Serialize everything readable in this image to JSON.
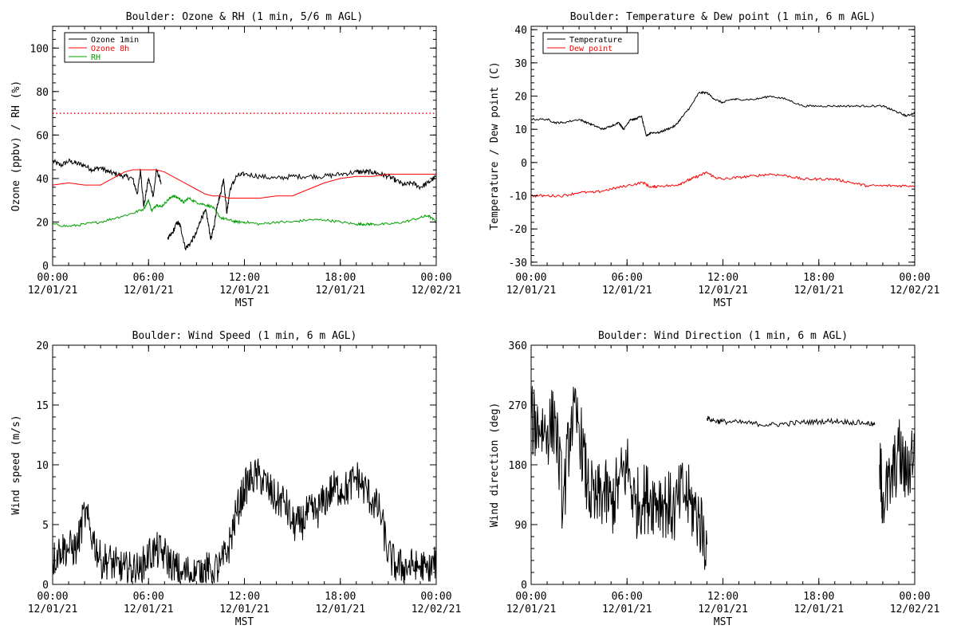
{
  "figure": {
    "background": "#ffffff",
    "axis_color": "#000000"
  },
  "chart_data": [
    {
      "id": "ozone",
      "type": "line",
      "title": "Boulder: Ozone & RH (1 min, 5/6 m AGL)",
      "xlabel": "MST",
      "ylabel": "Ozone (ppbv) / RH (%)",
      "xlim": [
        0,
        24
      ],
      "ylim": [
        0,
        110
      ],
      "yticks": [
        0,
        20,
        40,
        60,
        80,
        100
      ],
      "xticks": [
        {
          "time": "00:00",
          "date": "12/01/21"
        },
        {
          "time": "06:00",
          "date": "12/01/21"
        },
        {
          "time": "12:00",
          "date": "12/01/21"
        },
        {
          "time": "18:00",
          "date": "12/01/21"
        },
        {
          "time": "00:00",
          "date": "12/02/21"
        }
      ],
      "legend_position": "top-left",
      "reference_line": {
        "y": 70,
        "color": "#ff0000",
        "style": "dotted"
      },
      "series": [
        {
          "name": "Ozone 1min",
          "color": "#000000",
          "noise": 1.2,
          "x": [
            0,
            0.5,
            1,
            1.5,
            2,
            2.5,
            3,
            3.5,
            4,
            4.5,
            5,
            5.3,
            5.5,
            5.7,
            6,
            6.3,
            6.5,
            6.8,
            7.0,
            7.2,
            7.5,
            7.8,
            8.0,
            8.3,
            8.6,
            9.0,
            9.3,
            9.6,
            9.9,
            10.1,
            10.3,
            10.5,
            10.7,
            10.9,
            11.1,
            11.5,
            12,
            13,
            14,
            15,
            16,
            17,
            18,
            19,
            19.5,
            20,
            20.5,
            21,
            21.5,
            22,
            22.5,
            23,
            23.5,
            24
          ],
          "y": [
            48,
            46,
            48,
            47,
            46,
            44,
            45,
            43,
            42,
            41,
            40,
            33,
            44,
            27,
            40,
            32,
            44,
            38,
            null,
            12,
            15,
            20,
            18,
            8,
            10,
            15,
            22,
            25,
            12,
            18,
            28,
            33,
            40,
            24,
            35,
            41,
            42,
            41,
            40,
            41,
            41,
            41,
            42,
            43,
            43,
            43,
            42,
            41,
            39,
            37,
            38,
            36,
            38,
            41
          ]
        },
        {
          "name": "Ozone 8h",
          "color": "#ff0000",
          "noise": 0,
          "x": [
            0,
            1,
            2,
            3,
            3.5,
            4,
            4.5,
            5,
            5.5,
            6,
            6.5,
            7,
            7.5,
            8,
            8.5,
            9,
            9.5,
            10,
            10.5,
            11,
            12,
            13,
            14,
            15,
            16,
            17,
            18,
            19,
            20,
            21,
            22,
            23,
            24
          ],
          "y": [
            37,
            38,
            37,
            37,
            39,
            41,
            43,
            44,
            44,
            44,
            44,
            43,
            41,
            39,
            37,
            35,
            33,
            32,
            32,
            31,
            31,
            31,
            32,
            32,
            35,
            38,
            40,
            41,
            41,
            42,
            42,
            42,
            42
          ]
        },
        {
          "name": "RH",
          "color": "#00a000",
          "noise": 0.6,
          "x": [
            0,
            1,
            2,
            3,
            4,
            5,
            5.7,
            6,
            6.2,
            6.5,
            6.8,
            7.2,
            7.5,
            7.9,
            8.2,
            8.5,
            9,
            9.5,
            10,
            10.5,
            11,
            11.5,
            12,
            13,
            14,
            15,
            16,
            17,
            18,
            19,
            19.5,
            20,
            21,
            22,
            23,
            23.5,
            24
          ],
          "y": [
            19,
            18,
            19,
            20,
            22,
            24,
            26,
            30,
            25,
            28,
            27,
            30,
            32,
            31,
            29,
            31,
            29,
            28,
            27,
            22,
            21,
            20,
            20,
            19,
            20,
            20,
            21,
            21,
            20,
            19,
            19,
            19,
            19,
            20,
            22,
            23,
            20
          ]
        }
      ]
    },
    {
      "id": "temperature",
      "type": "line",
      "title": "Boulder: Temperature & Dew point (1 min, 6 m AGL)",
      "xlabel": "MST",
      "ylabel": "Temperature / Dew point (C)",
      "xlim": [
        0,
        24
      ],
      "ylim": [
        -31,
        41
      ],
      "yticks": [
        -30,
        -20,
        -10,
        0,
        10,
        20,
        30,
        40
      ],
      "xticks": [
        {
          "time": "00:00",
          "date": "12/01/21"
        },
        {
          "time": "06:00",
          "date": "12/01/21"
        },
        {
          "time": "12:00",
          "date": "12/01/21"
        },
        {
          "time": "18:00",
          "date": "12/01/21"
        },
        {
          "time": "00:00",
          "date": "12/02/21"
        }
      ],
      "legend_position": "top-left",
      "series": [
        {
          "name": "Temperature",
          "color": "#000000",
          "noise": 0.3,
          "x": [
            0,
            1,
            1.5,
            2,
            3,
            3.5,
            4,
            4.5,
            5,
            5.5,
            5.8,
            6.2,
            6.5,
            6.9,
            7.2,
            7.5,
            8,
            8.5,
            9,
            9.5,
            10,
            10.5,
            11,
            11.5,
            12,
            12.5,
            13,
            14,
            15,
            16,
            17,
            18,
            19,
            20,
            21,
            22,
            22.5,
            23,
            23.5,
            24
          ],
          "y": [
            13,
            13,
            12,
            12,
            13,
            12,
            11,
            10,
            11,
            12,
            10,
            13,
            13,
            14,
            8,
            9,
            9,
            10,
            11,
            14,
            17,
            21,
            21,
            19,
            18,
            19,
            19,
            19,
            20,
            19,
            17,
            17,
            17,
            17,
            17,
            17,
            16,
            15,
            14,
            15
          ]
        },
        {
          "name": "Dew point",
          "color": "#ff0000",
          "noise": 0.4,
          "x": [
            0,
            1,
            2,
            3,
            4,
            5,
            6,
            7,
            7.5,
            8,
            9,
            9.5,
            10,
            10.5,
            11,
            11.5,
            12,
            13,
            14,
            15,
            16,
            17,
            18,
            19,
            20,
            21,
            22,
            23,
            24
          ],
          "y": [
            -10,
            -10,
            -10,
            -9,
            -9,
            -8,
            -7,
            -6,
            -7.5,
            -7,
            -7,
            -6,
            -5,
            -4,
            -3,
            -4.5,
            -5,
            -4.5,
            -4,
            -3.5,
            -4,
            -5,
            -5,
            -5,
            -6,
            -7,
            -7,
            -7,
            -7
          ]
        }
      ]
    },
    {
      "id": "wind_speed",
      "type": "line",
      "title": "Boulder: Wind Speed (1 min, 6 m AGL)",
      "xlabel": "MST",
      "ylabel": "Wind speed (m/s)",
      "xlim": [
        0,
        24
      ],
      "ylim": [
        0,
        20
      ],
      "yticks": [
        0,
        5,
        10,
        15,
        20
      ],
      "xticks": [
        {
          "time": "00:00",
          "date": "12/01/21"
        },
        {
          "time": "06:00",
          "date": "12/01/21"
        },
        {
          "time": "12:00",
          "date": "12/01/21"
        },
        {
          "time": "18:00",
          "date": "12/01/21"
        },
        {
          "time": "00:00",
          "date": "12/02/21"
        }
      ],
      "series": [
        {
          "name": "",
          "color": "#000000",
          "noise": 1.6,
          "x": [
            0,
            0.5,
            1,
            1.5,
            2,
            2.5,
            3,
            3.5,
            4,
            4.5,
            5,
            5.5,
            6,
            6.5,
            7,
            7.5,
            8,
            8.5,
            9,
            9.5,
            10,
            10.5,
            11,
            11.5,
            12,
            12.5,
            13,
            13.5,
            14,
            14.5,
            15,
            15.5,
            16,
            16.5,
            17,
            17.5,
            18,
            18.5,
            19,
            19.5,
            20,
            20.5,
            21,
            21.5,
            22,
            22.5,
            23,
            23.5,
            24
          ],
          "y": [
            2,
            3,
            3,
            3,
            6,
            4,
            2,
            2,
            1.5,
            1.2,
            1.2,
            1.2,
            2.5,
            2.8,
            2.5,
            1.5,
            1,
            1,
            1,
            1.2,
            1.2,
            1.5,
            3,
            6,
            8,
            9,
            9,
            8,
            7,
            7,
            5,
            5,
            6,
            6,
            7,
            8,
            8,
            8,
            9,
            8,
            7,
            6,
            2.5,
            1.5,
            1.5,
            1.5,
            1.5,
            1,
            2
          ]
        }
      ]
    },
    {
      "id": "wind_direction",
      "type": "line",
      "title": "Boulder: Wind Direction (1 min, 6 m AGL)",
      "xlabel": "MST",
      "ylabel": "Wind direction (deg)",
      "xlim": [
        0,
        24
      ],
      "ylim": [
        0,
        360
      ],
      "yticks": [
        0,
        90,
        180,
        270,
        360
      ],
      "xticks": [
        {
          "time": "00:00",
          "date": "12/01/21"
        },
        {
          "time": "06:00",
          "date": "12/01/21"
        },
        {
          "time": "12:00",
          "date": "12/01/21"
        },
        {
          "time": "18:00",
          "date": "12/01/21"
        },
        {
          "time": "00:00",
          "date": "12/02/21"
        }
      ],
      "series": [
        {
          "name": "",
          "color": "#000000",
          "noise": 55,
          "x": [
            0,
            0.5,
            1,
            1.5,
            2,
            2.5,
            3,
            3.5,
            4,
            4.5,
            5,
            5.5,
            6,
            6.5,
            7,
            7.5,
            8,
            8.5,
            9,
            9.5,
            10,
            10.5,
            11
          ],
          "y": [
            245,
            240,
            230,
            250,
            120,
            250,
            240,
            150,
            120,
            140,
            120,
            150,
            180,
            120,
            130,
            130,
            130,
            120,
            110,
            140,
            120,
            100,
            60
          ]
        },
        {
          "name": "",
          "color": "#000000",
          "noise": 4,
          "x": [
            11,
            11.5,
            12,
            13,
            14,
            15,
            16,
            17,
            18,
            19,
            20,
            21,
            21.5
          ],
          "y": [
            250,
            246,
            245,
            244,
            242,
            240,
            242,
            244,
            245,
            246,
            244,
            243,
            240
          ]
        },
        {
          "name": "",
          "color": "#000000",
          "noise": 55,
          "x": [
            21.8,
            22,
            22.5,
            23,
            23.5,
            24
          ],
          "y": [
            180,
            130,
            150,
            200,
            160,
            220
          ]
        }
      ]
    }
  ]
}
